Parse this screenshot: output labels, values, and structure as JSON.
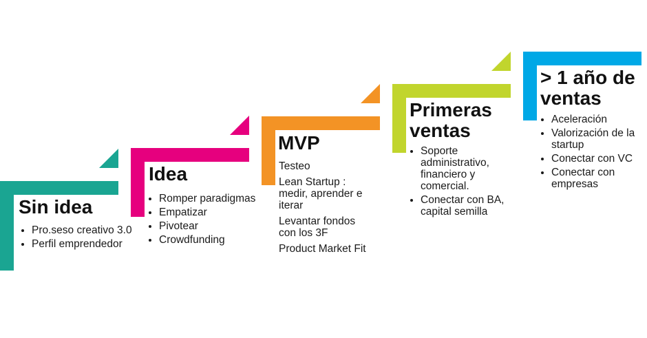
{
  "colors": {
    "teal": "#1aa592",
    "magenta": "#e6007e",
    "orange": "#f39325",
    "lime": "#c1d52d",
    "blue": "#00a8e6"
  },
  "stages": [
    {
      "title": "Sin idea",
      "items": [
        "Pro.seso creativo 3.0",
        "Perfil emprendedor"
      ]
    },
    {
      "title": "Idea",
      "items": [
        "Romper paradigmas",
        "Empatizar",
        "Pivotear",
        "Crowdfunding"
      ]
    },
    {
      "title": "MVP",
      "items": [
        "Testeo",
        "Lean Startup : medir, aprender e iterar",
        "Levantar fondos con los 3F",
        "Product Market Fit"
      ]
    },
    {
      "title": "Primeras ventas",
      "items": [
        "Soporte administrativo, financiero y comercial.",
        "Conectar con BA, capital semilla"
      ]
    },
    {
      "title": "> 1 año de ventas",
      "items": [
        "Aceleración",
        "Valorización de la startup",
        "Conectar con VC",
        "Conectar con empresas"
      ]
    }
  ]
}
